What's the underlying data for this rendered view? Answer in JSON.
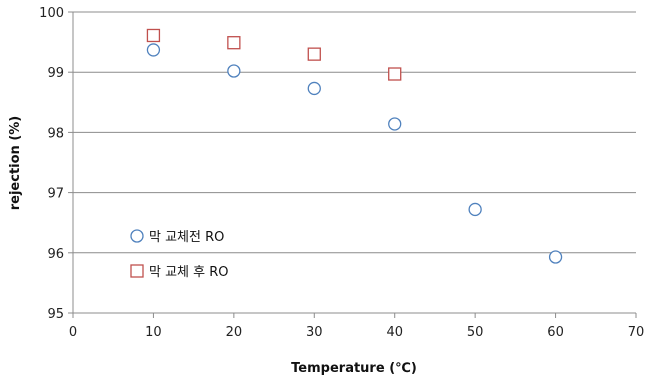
{
  "chart_data": {
    "type": "scatter",
    "xlabel": "Temperature (℃)",
    "ylabel": "rejection (%)",
    "xlim": [
      0,
      70
    ],
    "ylim": [
      95,
      100
    ],
    "xticks": [
      0,
      10,
      20,
      30,
      40,
      50,
      60,
      70
    ],
    "yticks": [
      95,
      96,
      97,
      98,
      99,
      100
    ],
    "grid": "horizontal",
    "legend_position": "bottom-left",
    "series": [
      {
        "name": "막 교체전 RO",
        "marker": "circle",
        "color": "#4f81bd",
        "x": [
          10,
          20,
          30,
          40,
          50,
          60
        ],
        "y": [
          99.37,
          99.02,
          98.73,
          98.14,
          96.72,
          95.93
        ]
      },
      {
        "name": "막 교체 후 RO",
        "marker": "square",
        "color": "#c0504d",
        "x": [
          10,
          20,
          30,
          40
        ],
        "y": [
          99.61,
          99.49,
          99.3,
          98.97
        ]
      }
    ]
  }
}
